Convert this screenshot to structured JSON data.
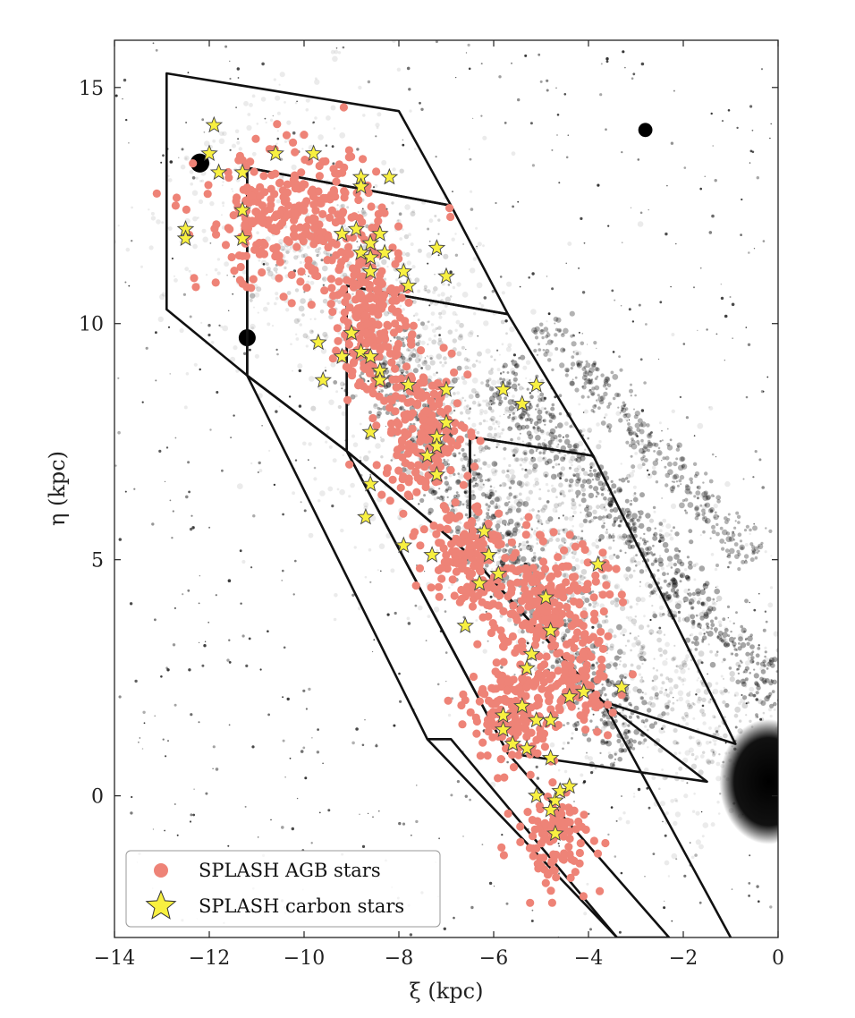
{
  "chart_data": {
    "type": "scatter",
    "xlabel": "ξ (kpc)",
    "ylabel": "η (kpc)",
    "xlim": [
      -14,
      0
    ],
    "ylim": [
      -3,
      16
    ],
    "xticks": [
      -14,
      -12,
      -10,
      -8,
      -6,
      -4,
      -2,
      0
    ],
    "yticks": [
      0,
      5,
      10,
      15
    ],
    "xtick_labels": [
      "−14",
      "−12",
      "−10",
      "−8",
      "−6",
      "−4",
      "−2",
      "0"
    ],
    "ytick_labels": [
      "0",
      "5",
      "10",
      "15"
    ],
    "grid": false,
    "legend_position": "bottom-left",
    "background": "grayscale sky image of galaxy disk",
    "series": [
      {
        "name": "SPLASH AGB stars",
        "marker": "circle",
        "color": "#ee8377",
        "clusters": [
          {
            "center": [
              -10.3,
              12.2
            ],
            "spread": [
              2.1,
              1.6
            ],
            "count": 300
          },
          {
            "center": [
              -8.6,
              10.2
            ],
            "spread": [
              0.9,
              1.7
            ],
            "count": 220
          },
          {
            "center": [
              -7.5,
              7.7
            ],
            "spread": [
              1.1,
              1.6
            ],
            "count": 200
          },
          {
            "center": [
              -6.6,
              5.2
            ],
            "spread": [
              0.9,
              1.3
            ],
            "count": 130
          },
          {
            "center": [
              -4.9,
              4.1
            ],
            "spread": [
              1.4,
              1.4
            ],
            "count": 220
          },
          {
            "center": [
              -5.6,
              1.8
            ],
            "spread": [
              1.0,
              1.3
            ],
            "count": 190
          },
          {
            "center": [
              -4.7,
              -0.9
            ],
            "spread": [
              0.9,
              1.1
            ],
            "count": 110
          },
          {
            "center": [
              -4.3,
              2.4
            ],
            "spread": [
              1.0,
              1.1
            ],
            "count": 90
          }
        ]
      },
      {
        "name": "SPLASH carbon stars",
        "marker": "star",
        "color": "#f8f040",
        "points": [
          [
            -11.9,
            14.2
          ],
          [
            -12.0,
            13.6
          ],
          [
            -11.8,
            13.2
          ],
          [
            -11.3,
            13.2
          ],
          [
            -10.6,
            13.6
          ],
          [
            -9.8,
            13.6
          ],
          [
            -8.8,
            13.1
          ],
          [
            -8.8,
            12.9
          ],
          [
            -8.2,
            13.1
          ],
          [
            -11.3,
            12.4
          ],
          [
            -12.5,
            12.0
          ],
          [
            -12.5,
            11.8
          ],
          [
            -11.3,
            11.8
          ],
          [
            -9.2,
            11.9
          ],
          [
            -8.9,
            12.0
          ],
          [
            -8.6,
            11.7
          ],
          [
            -8.4,
            11.9
          ],
          [
            -8.8,
            11.5
          ],
          [
            -8.6,
            11.4
          ],
          [
            -8.3,
            11.5
          ],
          [
            -8.6,
            11.1
          ],
          [
            -7.9,
            11.1
          ],
          [
            -7.8,
            10.8
          ],
          [
            -7.2,
            11.6
          ],
          [
            -7.0,
            11.0
          ],
          [
            -9.7,
            9.6
          ],
          [
            -9.0,
            9.8
          ],
          [
            -9.2,
            9.3
          ],
          [
            -8.8,
            9.4
          ],
          [
            -8.6,
            9.3
          ],
          [
            -8.4,
            9.0
          ],
          [
            -8.4,
            8.8
          ],
          [
            -9.6,
            8.8
          ],
          [
            -7.8,
            8.7
          ],
          [
            -7.0,
            8.6
          ],
          [
            -5.8,
            8.6
          ],
          [
            -5.1,
            8.7
          ],
          [
            -5.4,
            8.3
          ],
          [
            -7.0,
            7.9
          ],
          [
            -7.2,
            7.6
          ],
          [
            -7.2,
            7.4
          ],
          [
            -7.4,
            7.2
          ],
          [
            -8.6,
            7.7
          ],
          [
            -7.2,
            6.8
          ],
          [
            -8.6,
            6.6
          ],
          [
            -8.7,
            5.9
          ],
          [
            -7.9,
            5.3
          ],
          [
            -7.3,
            5.1
          ],
          [
            -6.2,
            5.6
          ],
          [
            -6.1,
            5.1
          ],
          [
            -6.3,
            4.5
          ],
          [
            -5.9,
            4.7
          ],
          [
            -4.9,
            4.2
          ],
          [
            -3.8,
            4.9
          ],
          [
            -4.8,
            3.5
          ],
          [
            -6.6,
            3.6
          ],
          [
            -5.2,
            3.0
          ],
          [
            -5.3,
            2.7
          ],
          [
            -4.1,
            2.2
          ],
          [
            -3.3,
            2.3
          ],
          [
            -5.4,
            1.9
          ],
          [
            -5.8,
            1.7
          ],
          [
            -4.4,
            2.1
          ],
          [
            -5.1,
            1.6
          ],
          [
            -4.8,
            1.6
          ],
          [
            -5.8,
            1.4
          ],
          [
            -5.6,
            1.1
          ],
          [
            -5.3,
            1.0
          ],
          [
            -4.8,
            0.8
          ],
          [
            -5.1,
            0.0
          ],
          [
            -4.7,
            -0.1
          ],
          [
            -4.6,
            0.1
          ],
          [
            -4.4,
            0.2
          ],
          [
            -4.8,
            -0.3
          ],
          [
            -4.7,
            -0.8
          ]
        ]
      }
    ],
    "outline_polygons": [
      {
        "name": "region-1",
        "points": [
          [
            -12.9,
            15.3
          ],
          [
            -8.0,
            14.5
          ],
          [
            -6.9,
            12.5
          ],
          [
            -11.2,
            13.3
          ],
          [
            -11.2,
            8.9
          ],
          [
            -12.9,
            10.3
          ]
        ]
      },
      {
        "name": "region-2",
        "points": [
          [
            -11.2,
            13.3
          ],
          [
            -6.9,
            12.5
          ],
          [
            -5.7,
            10.2
          ],
          [
            -9.1,
            10.8
          ],
          [
            -9.1,
            7.3
          ],
          [
            -11.2,
            8.9
          ]
        ]
      },
      {
        "name": "region-3",
        "points": [
          [
            -9.1,
            10.8
          ],
          [
            -5.7,
            10.2
          ],
          [
            -3.9,
            7.2
          ],
          [
            -6.5,
            7.6
          ],
          [
            -6.5,
            5.1
          ],
          [
            -9.1,
            7.3
          ]
        ]
      },
      {
        "name": "region-4",
        "points": [
          [
            -6.5,
            7.6
          ],
          [
            -3.9,
            7.2
          ],
          [
            -0.9,
            1.1
          ],
          [
            -3.7,
            2.0
          ],
          [
            -6.5,
            5.1
          ]
        ]
      },
      {
        "name": "region-5",
        "points": [
          [
            -9.1,
            7.3
          ],
          [
            -6.5,
            5.1
          ],
          [
            -3.7,
            2.0
          ],
          [
            -1.5,
            0.3
          ],
          [
            -5.7,
            0.9
          ]
        ]
      },
      {
        "name": "region-6",
        "points": [
          [
            -11.2,
            8.9
          ],
          [
            -9.1,
            7.3
          ],
          [
            -5.7,
            0.9
          ],
          [
            -2.3,
            -3.0
          ],
          [
            -3.4,
            -3.0
          ],
          [
            -6.9,
            1.2
          ],
          [
            -7.4,
            1.2
          ]
        ]
      },
      {
        "name": "outer-line",
        "points": [
          [
            -7.4,
            1.2
          ],
          [
            -3.4,
            -3.0
          ]
        ]
      },
      {
        "name": "inner-line",
        "points": [
          [
            -3.7,
            2.0
          ],
          [
            -1.0,
            -3.0
          ]
        ]
      }
    ],
    "dark_blobs": [
      {
        "center": [
          -12.2,
          13.4
        ],
        "r": 0.2
      },
      {
        "center": [
          -11.2,
          9.7
        ],
        "r": 0.18
      },
      {
        "center": [
          -2.8,
          14.1
        ],
        "r": 0.15
      }
    ]
  }
}
